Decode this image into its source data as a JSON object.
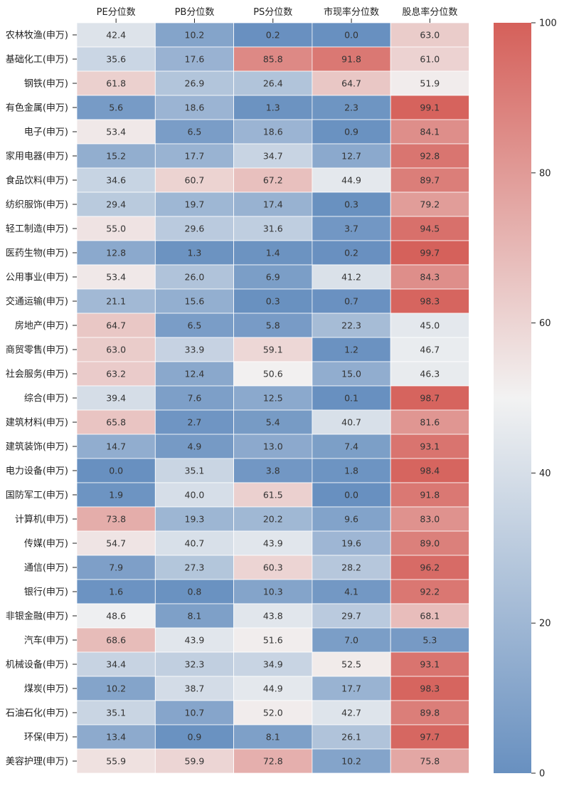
{
  "chart_data": {
    "type": "heatmap",
    "columns": [
      "PE分位数",
      "PB分位数",
      "PS分位数",
      "市现率分位数",
      "股息率分位数"
    ],
    "rows": [
      "农林牧渔(申万)",
      "基础化工(申万)",
      "钢铁(申万)",
      "有色金属(申万)",
      "电子(申万)",
      "家用电器(申万)",
      "食品饮料(申万)",
      "纺织服饰(申万)",
      "轻工制造(申万)",
      "医药生物(申万)",
      "公用事业(申万)",
      "交通运输(申万)",
      "房地产(申万)",
      "商贸零售(申万)",
      "社会服务(申万)",
      "综合(申万)",
      "建筑材料(申万)",
      "建筑装饰(申万)",
      "电力设备(申万)",
      "国防军工(申万)",
      "计算机(申万)",
      "传媒(申万)",
      "通信(申万)",
      "银行(申万)",
      "非银金融(申万)",
      "汽车(申万)",
      "机械设备(申万)",
      "煤炭(申万)",
      "石油石化(申万)",
      "环保(申万)",
      "美容护理(申万)"
    ],
    "values": [
      [
        "42.4",
        "10.2",
        "0.2",
        "0.0",
        "63.0"
      ],
      [
        "35.6",
        "17.6",
        "85.8",
        "91.8",
        "61.0"
      ],
      [
        "61.8",
        "26.9",
        "26.4",
        "64.7",
        "51.9"
      ],
      [
        "5.6",
        "18.6",
        "1.3",
        "2.3",
        "99.1"
      ],
      [
        "53.4",
        "6.5",
        "18.6",
        "0.9",
        "84.1"
      ],
      [
        "15.2",
        "17.7",
        "34.7",
        "12.7",
        "92.8"
      ],
      [
        "34.6",
        "60.7",
        "67.2",
        "44.9",
        "89.7"
      ],
      [
        "29.4",
        "19.7",
        "17.4",
        "0.3",
        "79.2"
      ],
      [
        "55.0",
        "29.6",
        "31.6",
        "3.7",
        "94.5"
      ],
      [
        "12.8",
        "1.3",
        "1.4",
        "0.2",
        "99.7"
      ],
      [
        "53.4",
        "26.0",
        "6.9",
        "41.2",
        "84.3"
      ],
      [
        "21.1",
        "15.6",
        "0.3",
        "0.7",
        "98.3"
      ],
      [
        "64.7",
        "6.5",
        "5.8",
        "22.3",
        "45.0"
      ],
      [
        "63.0",
        "33.9",
        "59.1",
        "1.2",
        "46.7"
      ],
      [
        "63.2",
        "12.4",
        "50.6",
        "15.0",
        "46.3"
      ],
      [
        "39.4",
        "7.6",
        "12.5",
        "0.1",
        "98.7"
      ],
      [
        "65.8",
        "2.7",
        "5.4",
        "40.7",
        "81.6"
      ],
      [
        "14.7",
        "4.9",
        "13.0",
        "7.4",
        "93.1"
      ],
      [
        "0.0",
        "35.1",
        "3.8",
        "1.8",
        "98.4"
      ],
      [
        "1.9",
        "40.0",
        "61.5",
        "0.0",
        "91.8"
      ],
      [
        "73.8",
        "19.3",
        "20.2",
        "9.6",
        "83.0"
      ],
      [
        "54.7",
        "40.7",
        "43.9",
        "19.6",
        "89.0"
      ],
      [
        "7.9",
        "27.3",
        "60.3",
        "28.2",
        "96.2"
      ],
      [
        "1.6",
        "0.8",
        "10.3",
        "4.1",
        "92.2"
      ],
      [
        "48.6",
        "8.1",
        "43.8",
        "29.7",
        "68.1"
      ],
      [
        "68.6",
        "43.9",
        "51.6",
        "7.0",
        "5.3"
      ],
      [
        "34.4",
        "32.3",
        "34.9",
        "52.5",
        "93.1"
      ],
      [
        "10.2",
        "38.7",
        "44.9",
        "17.7",
        "98.3"
      ],
      [
        "35.1",
        "10.7",
        "52.0",
        "42.7",
        "89.8"
      ],
      [
        "13.4",
        "0.9",
        "8.1",
        "26.1",
        "97.7"
      ],
      [
        "55.9",
        "59.9",
        "72.8",
        "10.2",
        "75.8"
      ]
    ],
    "colorbar": {
      "min": 0,
      "max": 100,
      "ticks": [
        "0",
        "20",
        "40",
        "60",
        "80",
        "100"
      ],
      "colormap": "diverging blue-white-red",
      "low_color": "#6890c0",
      "mid_color": "#f2f2f2",
      "high_color": "#d5605a"
    },
    "title": "",
    "xlabel": "",
    "ylabel": ""
  }
}
